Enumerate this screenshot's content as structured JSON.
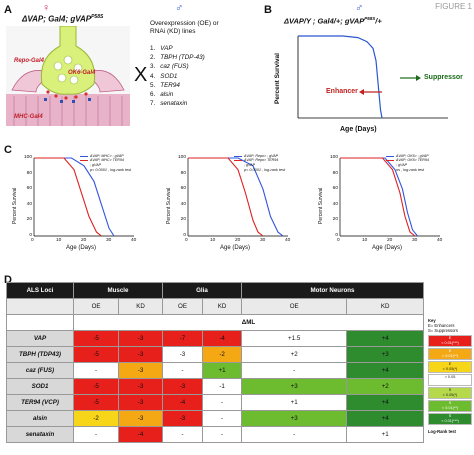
{
  "figure_tag": "FIGURE 1",
  "panel_a": {
    "letter": "A",
    "female_symbol": "♀",
    "male_symbol": "♂",
    "genotype": "ΔVAP; Gal4; gVAP",
    "genotype_sup": "P58S",
    "cross": "X",
    "labels": {
      "repo": "Repo-Gal4",
      "ok6": "OK6-Gal4",
      "mhc": "MHC-Gal4"
    },
    "oe_title_1": "Overexpression (OE) or",
    "oe_title_2": "RNAi (KD) lines",
    "genes": [
      {
        "n": "1.",
        "name": "VAP"
      },
      {
        "n": "2.",
        "name": "TBPH (TDP-43)"
      },
      {
        "n": "3.",
        "name": "caz (FUS)"
      },
      {
        "n": "4.",
        "name": "SOD1"
      },
      {
        "n": "5.",
        "name": "TER94"
      },
      {
        "n": "6.",
        "name": "alsin"
      },
      {
        "n": "7.",
        "name": "senataxin"
      }
    ]
  },
  "panel_b": {
    "letter": "B",
    "male_symbol": "♂",
    "title": "ΔVAP/Y ; Gal4/+; gVAP",
    "title_sup": "P58S",
    "title_end": "/+",
    "ylabel": "Percent Survival",
    "xlabel": "Age (Days)",
    "suppressor": "Suppressor",
    "enhancer": "Enhancer"
  },
  "panel_c": {
    "letter": "C",
    "ylabel": "Percent Survival",
    "xlabel": "Age (Days)",
    "yticks": [
      "100",
      "80",
      "60",
      "40",
      "20",
      "0"
    ],
    "xticks": [
      "0",
      "10",
      "20",
      "30",
      "40"
    ],
    "plots": [
      {
        "legend": [
          "ΔVAP; MHC> ; gVAP",
          "ΔVAP; MHC> TER94",
          "; gVAP"
        ],
        "stat": "p< 0.0001 , log-rank test"
      },
      {
        "legend": [
          "ΔVAP; Repo> ; gVAP",
          "ΔVAP; Repo> TER94",
          "; gVAP"
        ],
        "stat": "p< 0.0001 , log-rank test"
      },
      {
        "legend": [
          "ΔVAP; OK6> ; gVAP",
          "ΔVAP; OK6> TER94",
          "; gVAP"
        ],
        "stat": "ns , log-rank test"
      }
    ]
  },
  "chart_data": [
    {
      "type": "line",
      "title": "ΔVAP/Y ; Gal4/+; gVAP P58S /+",
      "xlabel": "Age (Days)",
      "ylabel": "Percent Survival",
      "series": [
        {
          "values": [
            [
              0,
              100
            ],
            [
              15,
              100
            ],
            [
              20,
              98
            ],
            [
              23,
              93
            ],
            [
              25,
              85
            ],
            [
              26,
              70
            ],
            [
              27,
              30
            ],
            [
              27.5,
              10
            ],
            [
              28,
              0
            ]
          ]
        }
      ]
    },
    {
      "type": "line",
      "xlabel": "Age (Days)",
      "ylabel": "Percent Survival",
      "xlim": [
        0,
        40
      ],
      "ylim": [
        0,
        100
      ],
      "series": [
        {
          "color": "#3355dd",
          "values": [
            [
              0,
              100
            ],
            [
              15,
              100
            ],
            [
              20,
              90
            ],
            [
              24,
              70
            ],
            [
              27,
              40
            ],
            [
              30,
              10
            ],
            [
              32,
              0
            ]
          ]
        },
        {
          "color": "#dd2222",
          "values": [
            [
              0,
              100
            ],
            [
              12,
              100
            ],
            [
              16,
              85
            ],
            [
              19,
              55
            ],
            [
              22,
              25
            ],
            [
              25,
              5
            ],
            [
              27,
              0
            ]
          ]
        }
      ]
    },
    {
      "type": "line",
      "xlabel": "Age (Days)",
      "ylabel": "Percent Survival",
      "xlim": [
        0,
        40
      ],
      "ylim": [
        0,
        100
      ],
      "series": [
        {
          "color": "#3355dd",
          "values": [
            [
              0,
              100
            ],
            [
              20,
              100
            ],
            [
              26,
              90
            ],
            [
              30,
              60
            ],
            [
              33,
              25
            ],
            [
              36,
              5
            ],
            [
              38,
              0
            ]
          ]
        },
        {
          "color": "#dd2222",
          "values": [
            [
              0,
              100
            ],
            [
              16,
              100
            ],
            [
              20,
              85
            ],
            [
              23,
              55
            ],
            [
              26,
              20
            ],
            [
              28,
              5
            ],
            [
              30,
              0
            ]
          ]
        }
      ]
    },
    {
      "type": "line",
      "xlabel": "Age (Days)",
      "ylabel": "Percent Survival",
      "xlim": [
        0,
        40
      ],
      "ylim": [
        0,
        100
      ],
      "series": [
        {
          "color": "#3355dd",
          "values": [
            [
              0,
              100
            ],
            [
              18,
              100
            ],
            [
              22,
              85
            ],
            [
              25,
              60
            ],
            [
              27,
              30
            ],
            [
              29,
              8
            ],
            [
              31,
              0
            ]
          ]
        },
        {
          "color": "#dd2222",
          "values": [
            [
              0,
              100
            ],
            [
              17,
              100
            ],
            [
              21,
              85
            ],
            [
              24,
              55
            ],
            [
              26,
              25
            ],
            [
              28,
              5
            ],
            [
              30,
              0
            ]
          ]
        }
      ]
    }
  ],
  "panel_d": {
    "letter": "D",
    "header": {
      "loci": "ALS Loci",
      "muscle": "Muscle",
      "glia": "Glia",
      "motor": "Motor Neurons"
    },
    "sub": [
      "OE",
      "KD",
      "OE",
      "KD",
      "OE",
      "KD"
    ],
    "ml_label": "ΔML",
    "rows": [
      {
        "name": "VAP",
        "cells": [
          {
            "v": "-5",
            "c": "#e8201c"
          },
          {
            "v": "-3",
            "c": "#e8201c"
          },
          {
            "v": "-7",
            "c": "#e8201c"
          },
          {
            "v": "-4",
            "c": "#e8201c"
          },
          {
            "v": "+1.5",
            "c": "#ffffff"
          },
          {
            "v": "+4",
            "c": "#2e8b2e"
          }
        ]
      },
      {
        "name": "TBPH (TDP43)",
        "cells": [
          {
            "v": "-5",
            "c": "#e8201c"
          },
          {
            "v": "-3",
            "c": "#e8201c"
          },
          {
            "v": "-3",
            "c": "#ffffff"
          },
          {
            "v": "-2",
            "c": "#f4a814"
          },
          {
            "v": "+2",
            "c": "#ffffff"
          },
          {
            "v": "+3",
            "c": "#2e8b2e"
          }
        ]
      },
      {
        "name": "caz (FUS)",
        "cells": [
          {
            "v": "-",
            "c": "#ffffff"
          },
          {
            "v": "-3",
            "c": "#f4a814"
          },
          {
            "v": "-",
            "c": "#ffffff"
          },
          {
            "v": "+1",
            "c": "#6dbb2e"
          },
          {
            "v": "-",
            "c": "#ffffff"
          },
          {
            "v": "+4",
            "c": "#2e8b2e"
          }
        ]
      },
      {
        "name": "SOD1",
        "cells": [
          {
            "v": "-5",
            "c": "#e8201c"
          },
          {
            "v": "-3",
            "c": "#e8201c"
          },
          {
            "v": "-3",
            "c": "#e8201c"
          },
          {
            "v": "-1",
            "c": "#ffffff"
          },
          {
            "v": "+3",
            "c": "#6dbb2e"
          },
          {
            "v": "+2",
            "c": "#6dbb2e"
          }
        ]
      },
      {
        "name": "TER94 (VCP)",
        "cells": [
          {
            "v": "-5",
            "c": "#e8201c"
          },
          {
            "v": "-3",
            "c": "#e8201c"
          },
          {
            "v": "-4",
            "c": "#e8201c"
          },
          {
            "v": "-",
            "c": "#ffffff"
          },
          {
            "v": "+1",
            "c": "#ffffff"
          },
          {
            "v": "+4",
            "c": "#2e8b2e"
          }
        ]
      },
      {
        "name": "alsin",
        "cells": [
          {
            "v": "-2",
            "c": "#f7d518"
          },
          {
            "v": "-3",
            "c": "#f4a814"
          },
          {
            "v": "-3",
            "c": "#e8201c"
          },
          {
            "v": "-",
            "c": "#ffffff"
          },
          {
            "v": "+3",
            "c": "#6dbb2e"
          },
          {
            "v": "+4",
            "c": "#2e8b2e"
          }
        ]
      },
      {
        "name": "senataxin",
        "cells": [
          {
            "v": "-",
            "c": "#ffffff"
          },
          {
            "v": "-4",
            "c": "#e8201c"
          },
          {
            "v": "-",
            "c": "#ffffff"
          },
          {
            "v": "-",
            "c": "#ffffff"
          },
          {
            "v": "-",
            "c": "#ffffff"
          },
          {
            "v": "+1",
            "c": "#ffffff"
          }
        ]
      }
    ],
    "key": {
      "title": "Key",
      "e": "E= Enhancers",
      "s": "S= Suppressors",
      "boxes": [
        {
          "t1": "E",
          "t2": "< 0.01(***)",
          "c": "#e8201c"
        },
        {
          "t1": "E",
          "t2": "< 0.01(**)",
          "c": "#f4a814"
        },
        {
          "t1": "E",
          "t2": "< 0.05(*)",
          "c": "#f7d518"
        },
        {
          "t1": "> 0.05",
          "t2": "",
          "c": "#ffffff"
        },
        {
          "t1": "S",
          "t2": "< 0.05(*)",
          "c": "#b5d94a"
        },
        {
          "t1": "S",
          "t2": "< 0.01(**)",
          "c": "#6dbb2e"
        },
        {
          "t1": "S",
          "t2": "< 0.01(***)",
          "c": "#2e8b2e"
        }
      ],
      "footer": "Log-Rank test"
    }
  }
}
